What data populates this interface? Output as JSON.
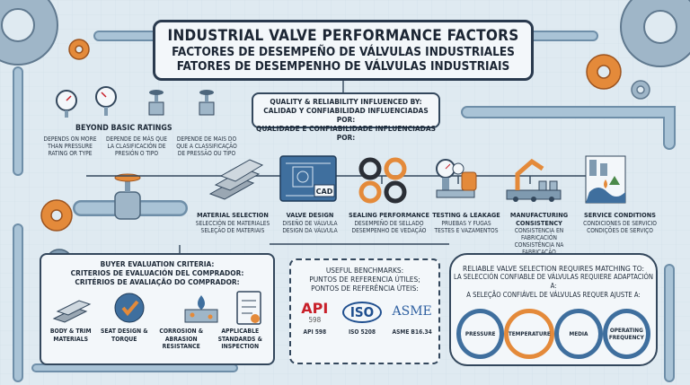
{
  "title": {
    "en": "INDUSTRIAL VALVE PERFORMANCE FACTORS",
    "es": "FACTORES DE DESEMPEÑO DE VÁLVULAS INDUSTRIALES",
    "pt": "FATORES DE DESEMPENHO DE VÁLVULAS INDUSTRIAIS"
  },
  "quality": {
    "en": "QUALITY & RELIABILITY INFLUENCED BY:",
    "es": "CALIDAD Y CONFIABILIDAD INFLUENCIADAS POR:",
    "pt": "QUALIDADE E CONFIABILIDADE INFLUENCIADAS POR:"
  },
  "beyond": {
    "title": "BEYOND BASIC RATINGS",
    "items": [
      "DEPENDS ON MORE THAN PRESSURE RATING OR TYPE",
      "DEPENDE DE MÁS QUE LA CLASIFICACIÓN DE PRESIÓN O TIPO",
      "DEPENDE DE MAIS DO QUE A CLASSIFICAÇÃO DE PRESSÃO OU TIPO"
    ]
  },
  "factors": [
    {
      "icon": "metal-bars-icon",
      "en": "MATERIAL SELECTION",
      "es": "SELECCIÓN DE MATERIALES",
      "pt": "SELEÇÃO DE MATERIAIS"
    },
    {
      "icon": "cad-blueprint-icon",
      "badge": "CAD",
      "en": "VALVE DESIGN",
      "es": "DISEÑO DE VÁLVULA",
      "pt": "DESIGN DA VÁLVULA"
    },
    {
      "icon": "seal-rings-icon",
      "en": "SEALING PERFORMANCE",
      "es": "DESEMPEÑO DE SELLADO",
      "pt": "DESEMPENHO DE VEDAÇÃO"
    },
    {
      "icon": "test-gauge-icon",
      "en": "TESTING & LEAKAGE",
      "es": "PRUEBAS Y FUGAS",
      "pt": "TESTES E VAZAMENTOS"
    },
    {
      "icon": "robot-arm-icon",
      "en": "MANUFACTURING CONSISTENCY",
      "es": "CONSISTENCIA EN FABRICACIÓN",
      "pt": "CONSISTÊNCIA NA FABRICAÇÃO"
    },
    {
      "icon": "service-conditions-icon",
      "en": "SERVICE CONDITIONS",
      "es": "CONDICIONES DE SERVICIO",
      "pt": "CONDIÇÕES DE SERVIÇO"
    }
  ],
  "buyer": {
    "title": {
      "en": "BUYER EVALUATION CRITERIA:",
      "es": "CRITERIOS DE EVALUACIÓN DEL COMPRADOR:",
      "pt": "CRITÉRIOS DE AVALIAÇÃO DO COMPRADOR:"
    },
    "items": [
      {
        "icon": "metal-bars-icon",
        "label": "BODY & TRIM MATERIALS"
      },
      {
        "icon": "checkmark-gear-icon",
        "label": "SEAT DESIGN & TORQUE"
      },
      {
        "icon": "corrosion-drop-icon",
        "label": "CORROSION & ABRASION RESISTANCE"
      },
      {
        "icon": "checklist-icon",
        "label": "APPLICABLE STANDARDS & INSPECTION"
      }
    ]
  },
  "benchmarks": {
    "title": {
      "en": "USEFUL BENCHMARKS:",
      "es": "PUNTOS DE REFERENCIA ÚTILES;",
      "pt": "PONTOS DE REFERÊNCIA ÚTEIS:"
    },
    "logos": [
      {
        "mark": "API",
        "sub": "598",
        "caption": "API 598",
        "color": "#c8202a"
      },
      {
        "mark": "ISO",
        "sub": "",
        "caption": "ISO 5208",
        "color": "#1f4f8f"
      },
      {
        "mark": "ASME",
        "sub": "",
        "caption": "ASME B16.34",
        "color": "#2d5fa0"
      }
    ]
  },
  "reliable": {
    "title": {
      "en": "RELIABLE VALVE SELECTION REQUIRES MATCHING TO:",
      "es": "LA SELECCIÓN CONFIABLE DE VÁLVULAS REQUIERE ADAPTACIÓN A:",
      "pt": "A SELEÇÃO CONFIÁVEL DE VÁLVULAS REQUER AJUSTE A:"
    },
    "items": [
      "PRESSURE",
      "TEMPERATURE",
      "MEDIA",
      "OPERATING FREQUENCY"
    ]
  },
  "colors": {
    "pipe": "#a9c3d6",
    "pipe_dark": "#6e8ea8",
    "accent_orange": "#e48a3a",
    "border": "#33475c",
    "background": "#dfeaf1"
  }
}
